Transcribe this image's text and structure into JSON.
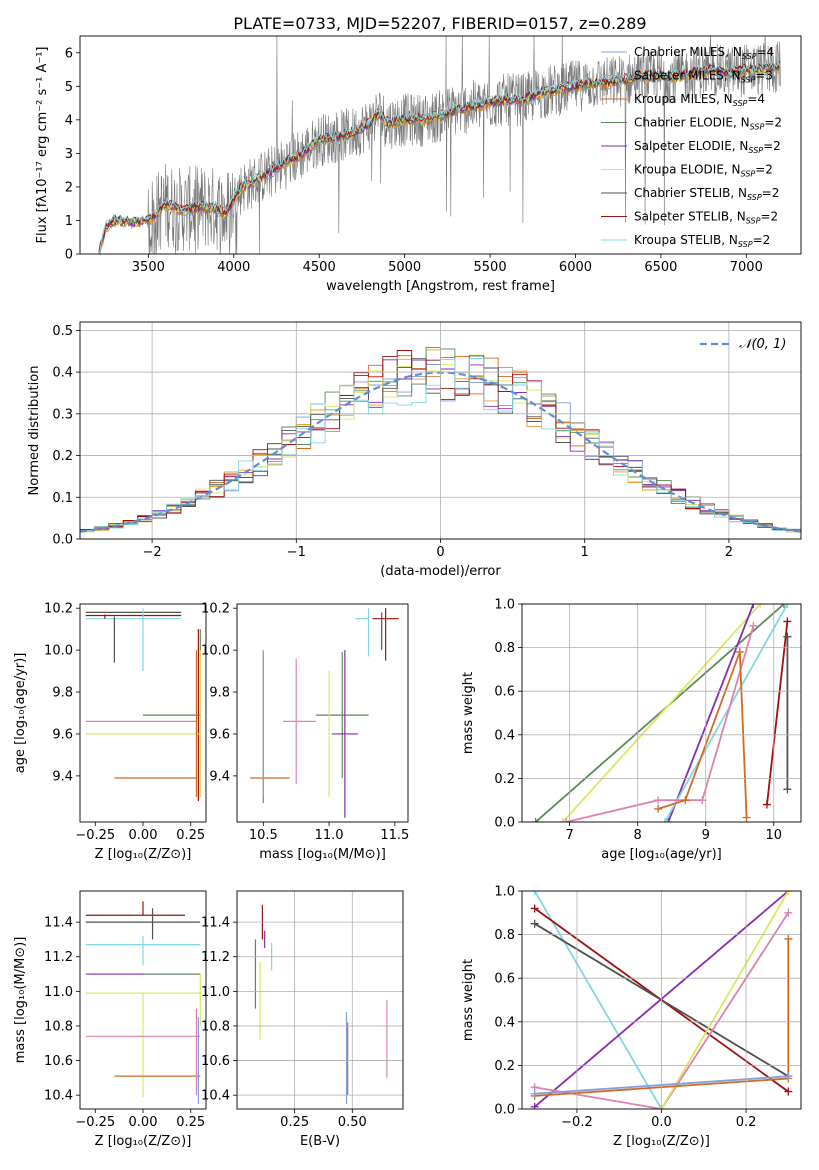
{
  "figure_title": "PLATE=0733, MJD=52207, FIBERID=0157, z=0.289",
  "colors": {
    "chabrier_miles": "#7f9fe0",
    "salpeter_miles": "#e8a030",
    "kroupa_miles": "#d06a20",
    "chabrier_elodie": "#5a8a5a",
    "salpeter_elodie": "#8a2ab0",
    "kroupa_elodie": "#d8e860",
    "chabrier_stelib": "#505050",
    "salpeter_stelib": "#a01010",
    "kroupa_stelib": "#80d8e0",
    "pink": "#e080b0",
    "data": "#777777",
    "normal": "#5b8fd6"
  },
  "chart_data": [
    {
      "type": "line",
      "xlabel": "wavelength [Angstrom, rest frame]",
      "ylabel": "Flux [fλ10⁻¹⁷ erg cm⁻² s⁻¹ A⁻¹]",
      "xlim": [
        3100,
        7320
      ],
      "ylim": [
        0,
        6.5
      ],
      "xticks": [
        "3500",
        "4000",
        "4500",
        "5000",
        "5500",
        "6000",
        "6500",
        "7000"
      ],
      "yticks": [
        "0",
        "1",
        "2",
        "3",
        "4",
        "5",
        "6"
      ],
      "legend_position": "top-right",
      "series": [
        {
          "name": "Chabrier MILES, N_SSP=4",
          "color": "#7f9fe0"
        },
        {
          "name": "Salpeter MILES, N_SSP=3",
          "color": "#e8a030"
        },
        {
          "name": "Kroupa MILES, N_SSP=4",
          "color": "#d06a20"
        },
        {
          "name": "Chabrier ELODIE, N_SSP=2",
          "color": "#5a8a5a"
        },
        {
          "name": "Salpeter ELODIE, N_SSP=2",
          "color": "#8a2ab0"
        },
        {
          "name": "Kroupa ELODIE, N_SSP=2",
          "color": "#d8e860"
        },
        {
          "name": "Chabrier STELIB, N_SSP=2",
          "color": "#505050"
        },
        {
          "name": "Salpeter STELIB, N_SSP=2",
          "color": "#a01010"
        },
        {
          "name": "Kroupa STELIB, N_SSP=2",
          "color": "#80d8e0"
        }
      ],
      "model_continuum": {
        "x": [
          3210,
          3250,
          3300,
          3400,
          3500,
          3550,
          3600,
          3700,
          3800,
          3900,
          3950,
          4000,
          4050,
          4100,
          4200,
          4300,
          4400,
          4500,
          4600,
          4700,
          4800,
          4850,
          4900,
          5000,
          5100,
          5200,
          5300,
          5400,
          5500,
          5600,
          5700,
          5800,
          5900,
          6000,
          6100,
          6200,
          6300,
          6400,
          6500,
          6600,
          6700,
          6800,
          6900,
          7000,
          7100,
          7200
        ],
        "y": [
          0,
          0.8,
          1.0,
          0.95,
          1.0,
          1.2,
          1.5,
          1.3,
          1.4,
          1.35,
          1.2,
          1.6,
          2.0,
          2.1,
          2.4,
          2.7,
          3.0,
          3.4,
          3.5,
          3.6,
          3.9,
          4.2,
          3.9,
          4.0,
          4.0,
          4.1,
          4.3,
          4.4,
          4.5,
          4.6,
          4.6,
          4.8,
          4.9,
          5.0,
          5.1,
          5.1,
          5.2,
          5.3,
          5.3,
          5.3,
          5.4,
          5.5,
          5.4,
          5.5,
          5.5,
          5.6
        ]
      }
    },
    {
      "type": "bar",
      "xlabel": "(data-model)/error",
      "ylabel": "Normed distribution",
      "xlim": [
        -2.5,
        2.5
      ],
      "ylim": [
        0,
        0.52
      ],
      "xticks": [
        "−2",
        "−1",
        "0",
        "1",
        "2"
      ],
      "yticks": [
        "0.0",
        "0.1",
        "0.2",
        "0.3",
        "0.4",
        "0.5"
      ],
      "legend": "𝒩(0, 1)",
      "legend_position": "top-right",
      "bin_width": 0.1
    },
    {
      "type": "scatter",
      "xlabel": "Z [log₁₀(Z/Z⊙)]",
      "ylabel": "age  [log₁₀(age/yr)]",
      "xlim": [
        -0.33,
        0.33
      ],
      "ylim": [
        9.18,
        10.22
      ],
      "xticks": [
        "−0.25",
        "0.00",
        "0.25"
      ],
      "yticks": [
        "9.4",
        "9.6",
        "9.8",
        "10.0",
        "10.2"
      ]
    },
    {
      "type": "scatter",
      "xlabel": "mass [log₁₀(M/M⊙)]",
      "xlim": [
        10.3,
        11.6
      ],
      "ylim": [
        9.18,
        10.22
      ],
      "xticks": [
        "10.5",
        "11.0",
        "11.5"
      ],
      "yticks": [
        "9.4",
        "9.6",
        "9.8",
        "10.0",
        "10.2"
      ]
    },
    {
      "type": "line",
      "xlabel": "age  [log₁₀(age/yr)]",
      "ylabel": "mass weight",
      "xlim": [
        6.3,
        10.4
      ],
      "ylim": [
        0,
        1
      ],
      "xticks": [
        "7",
        "8",
        "9",
        "10"
      ],
      "yticks": [
        "0.0",
        "0.2",
        "0.4",
        "0.6",
        "0.8",
        "1.0"
      ],
      "series": [
        {
          "color": "#5a8a5a",
          "x": [
            6.5,
            10.15
          ],
          "y": [
            0,
            1
          ]
        },
        {
          "color": "#d8e860",
          "x": [
            6.9,
            9.8
          ],
          "y": [
            0,
            1
          ]
        },
        {
          "color": "#8a2ab0",
          "x": [
            8.45,
            9.7
          ],
          "y": [
            0,
            1
          ]
        },
        {
          "color": "#80d8e0",
          "x": [
            8.4,
            10.2
          ],
          "y": [
            0,
            1
          ]
        },
        {
          "color": "#e080b0",
          "x": [
            6.95,
            8.3,
            8.95,
            9.7
          ],
          "y": [
            0,
            0.1,
            0.1,
            0.9
          ]
        },
        {
          "color": "#d06a20",
          "x": [
            8.3,
            8.7,
            9.5,
            9.6
          ],
          "y": [
            0.06,
            0.1,
            0.78,
            0.02
          ]
        },
        {
          "color": "#a01010",
          "x": [
            9.9,
            10.2
          ],
          "y": [
            0.08,
            0.92
          ]
        },
        {
          "color": "#505050",
          "x": [
            10.2,
            10.2
          ],
          "y": [
            0.15,
            0.85
          ]
        }
      ]
    },
    {
      "type": "scatter",
      "xlabel": "Z [log₁₀(Z/Z⊙)]",
      "ylabel": "mass [log₁₀(M/M⊙)]",
      "xlim": [
        -0.33,
        0.33
      ],
      "ylim": [
        10.32,
        11.58
      ],
      "xticks": [
        "−0.25",
        "0.00",
        "0.25"
      ],
      "yticks": [
        "10.4",
        "10.6",
        "10.8",
        "11.0",
        "11.2",
        "11.4"
      ]
    },
    {
      "type": "scatter",
      "xlabel": "E(B-V)",
      "xlim": [
        0,
        0.72
      ],
      "ylim": [
        10.32,
        11.58
      ],
      "xticks": [
        "0.25",
        "0.50"
      ],
      "yticks": [
        "10.4",
        "10.6",
        "10.8",
        "11.0",
        "11.2",
        "11.4"
      ]
    },
    {
      "type": "line",
      "xlabel": "Z [log₁₀(Z/Z⊙)]",
      "ylabel": "mass weight",
      "xlim": [
        -0.33,
        0.33
      ],
      "ylim": [
        0,
        1
      ],
      "xticks": [
        "−0.2",
        "0.0",
        "0.2"
      ],
      "yticks": [
        "0.0",
        "0.2",
        "0.4",
        "0.6",
        "0.8",
        "1.0"
      ],
      "series": [
        {
          "color": "#80d8e0",
          "x": [
            -0.3,
            0
          ],
          "y": [
            1,
            0
          ]
        },
        {
          "color": "#a01010",
          "x": [
            -0.3,
            0.3
          ],
          "y": [
            0.92,
            0.08
          ]
        },
        {
          "color": "#505050",
          "x": [
            -0.3,
            0.3
          ],
          "y": [
            0.85,
            0.15
          ]
        },
        {
          "color": "#8a2ab0",
          "x": [
            -0.3,
            0.3
          ],
          "y": [
            0.01,
            1
          ]
        },
        {
          "color": "#e080b0",
          "x": [
            -0.3,
            0,
            0.3
          ],
          "y": [
            0.1,
            0,
            0.9
          ]
        },
        {
          "color": "#d8e860",
          "x": [
            0,
            0.3
          ],
          "y": [
            0,
            1
          ]
        },
        {
          "color": "#d06a20",
          "x": [
            -0.3,
            0.3,
            0.3
          ],
          "y": [
            0.06,
            0.14,
            0.78
          ]
        },
        {
          "color": "#7f9fe0",
          "x": [
            -0.3,
            0.3
          ],
          "y": [
            0.07,
            0.15
          ]
        }
      ]
    }
  ]
}
